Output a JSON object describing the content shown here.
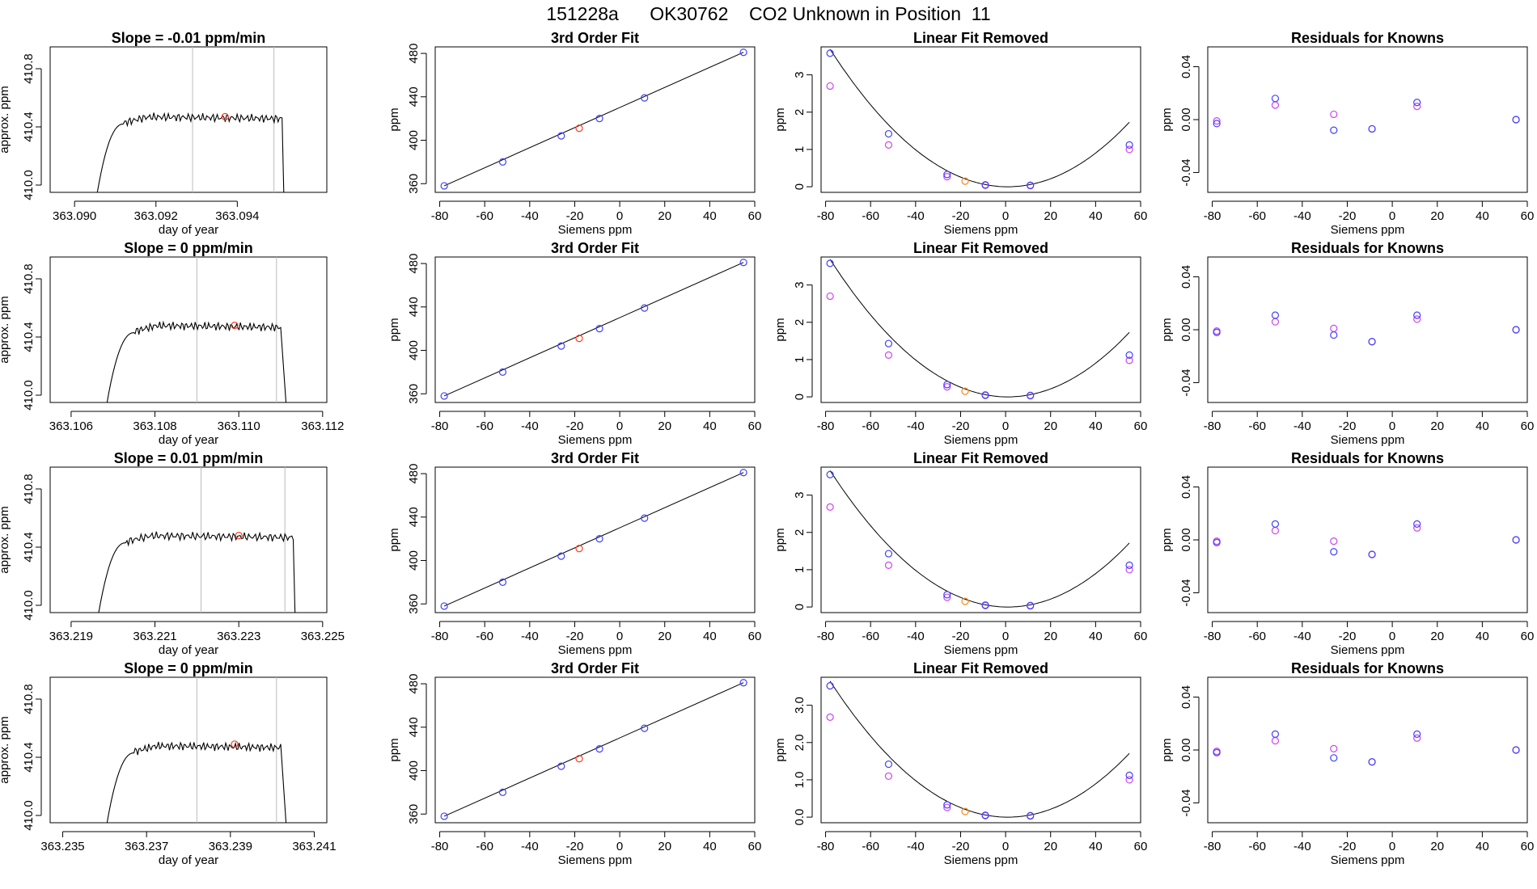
{
  "page_title": "151228a      OK30762    CO2 Unknown in Position  11",
  "colors": {
    "trace": "#000000",
    "known_point": "#4040ff",
    "fit_point": "#cc44ee",
    "unknown_point": "#ff3b1f",
    "unknown_orange": "#f08a24",
    "guide_line": "#bbbbbb"
  },
  "chart_data": [
    {
      "type": "line",
      "row": 1,
      "title": "Slope =  -0.01  ppm/min",
      "xlabel": "day of year",
      "ylabel": "approx. ppm",
      "xticks": [
        "363.090",
        "363.092",
        "363.094"
      ],
      "yticks": [
        "410.0",
        "410.4",
        "410.8"
      ],
      "xlim": [
        363.0894,
        363.0962
      ],
      "ylim": [
        409.95,
        410.95
      ],
      "vlines": [
        363.0929,
        363.0949
      ],
      "marker": {
        "x": 363.0937,
        "y": 410.47
      },
      "trace": {
        "rise_start": 363.0905,
        "plateau_start": 363.0912,
        "plateau_end": 363.0951,
        "drop_end": 363.09515,
        "level": 410.46
      }
    },
    {
      "type": "scatter",
      "row": 1,
      "title": "3rd Order Fit",
      "xlabel": "Siemens ppm",
      "ylabel": "ppm",
      "xticks": [
        "-80",
        "-60",
        "-40",
        "-20",
        "0",
        "20",
        "40",
        "60"
      ],
      "yticks": [
        "360",
        "400",
        "440",
        "480"
      ],
      "xlim": [
        -82,
        60
      ],
      "ylim": [
        352,
        486
      ],
      "known_x": [
        -78,
        -52,
        -26,
        -9,
        11,
        55
      ],
      "known_y": [
        358,
        380,
        404,
        420,
        439,
        481
      ],
      "unknown": {
        "x": -18,
        "y": 411
      }
    },
    {
      "type": "scatter",
      "row": 1,
      "title": "Linear Fit Removed",
      "xlabel": "Siemens ppm",
      "ylabel": "ppm",
      "xticks": [
        "-80",
        "-60",
        "-40",
        "-20",
        "0",
        "20",
        "40",
        "60"
      ],
      "yticks": [
        "0",
        "1",
        "2",
        "3"
      ],
      "xlim": [
        -82,
        60
      ],
      "ylim": [
        -0.15,
        3.75
      ],
      "known_x": [
        -78,
        -52,
        -26,
        -9,
        11,
        55
      ],
      "known_y": [
        3.58,
        1.42,
        0.33,
        0.05,
        0.04,
        1.12
      ],
      "fit_y": [
        2.7,
        1.12,
        0.27,
        0.04,
        0.03,
        1.0
      ],
      "unknown": {
        "x": -18,
        "y": 0.15
      },
      "curve": {
        "a": 0.000592,
        "b": -0.0011,
        "c": 0.0
      }
    },
    {
      "type": "scatter",
      "row": 1,
      "title": "Residuals for Knowns",
      "xlabel": "Siemens ppm",
      "ylabel": "ppm",
      "xticks": [
        "-80",
        "-60",
        "-40",
        "-20",
        "0",
        "20",
        "40",
        "60"
      ],
      "yticks": [
        "-0.04",
        "0.00",
        "0.04"
      ],
      "xlim": [
        -82,
        60
      ],
      "ylim": [
        -0.055,
        0.055
      ],
      "known_x": [
        -78,
        -52,
        -26,
        -9,
        11,
        55
      ],
      "known_y": [
        -0.003,
        0.016,
        -0.008,
        -0.007,
        0.013,
        0.0
      ],
      "fit_y": [
        -0.001,
        0.011,
        0.004,
        -0.007,
        0.01,
        0.0
      ]
    },
    {
      "type": "line",
      "row": 2,
      "title": "Slope =  0  ppm/min",
      "xlabel": "day of year",
      "ylabel": "approx. ppm",
      "xticks": [
        "363.106",
        "363.108",
        "363.110",
        "363.112"
      ],
      "yticks": [
        "410.0",
        "410.4",
        "410.8"
      ],
      "xlim": [
        363.1055,
        363.1121
      ],
      "ylim": [
        409.95,
        410.95
      ],
      "vlines": [
        363.109,
        363.1109
      ],
      "marker": {
        "x": 363.1099,
        "y": 410.48
      },
      "trace": {
        "rise_start": 363.1068,
        "plateau_start": 363.1075,
        "plateau_end": 363.111,
        "drop_end": 363.11115,
        "level": 410.47
      }
    },
    {
      "type": "scatter",
      "row": 2,
      "title": "3rd Order Fit",
      "xlabel": "Siemens ppm",
      "ylabel": "ppm",
      "xticks": [
        "-80",
        "-60",
        "-40",
        "-20",
        "0",
        "20",
        "40",
        "60"
      ],
      "yticks": [
        "360",
        "400",
        "440",
        "480"
      ],
      "xlim": [
        -82,
        60
      ],
      "ylim": [
        352,
        486
      ],
      "known_x": [
        -78,
        -52,
        -26,
        -9,
        11,
        55
      ],
      "known_y": [
        358,
        380,
        404,
        420,
        439,
        481
      ],
      "unknown": {
        "x": -18,
        "y": 411
      }
    },
    {
      "type": "scatter",
      "row": 2,
      "title": "Linear Fit Removed",
      "xlabel": "Siemens ppm",
      "ylabel": "ppm",
      "xticks": [
        "-80",
        "-60",
        "-40",
        "-20",
        "0",
        "20",
        "40",
        "60"
      ],
      "yticks": [
        "0",
        "1",
        "2",
        "3"
      ],
      "xlim": [
        -82,
        60
      ],
      "ylim": [
        -0.15,
        3.75
      ],
      "known_x": [
        -78,
        -52,
        -26,
        -9,
        11,
        55
      ],
      "known_y": [
        3.58,
        1.43,
        0.33,
        0.05,
        0.04,
        1.12
      ],
      "fit_y": [
        2.7,
        1.12,
        0.27,
        0.04,
        0.03,
        0.98
      ],
      "unknown": {
        "x": -18,
        "y": 0.15
      },
      "curve": {
        "a": 0.000592,
        "b": -0.0011,
        "c": 0.0
      }
    },
    {
      "type": "scatter",
      "row": 2,
      "title": "Residuals for Knowns",
      "xlabel": "Siemens ppm",
      "ylabel": "ppm",
      "xticks": [
        "-80",
        "-60",
        "-40",
        "-20",
        "0",
        "20",
        "40",
        "60"
      ],
      "yticks": [
        "-0.04",
        "0.00",
        "0.04"
      ],
      "xlim": [
        -82,
        60
      ],
      "ylim": [
        -0.055,
        0.055
      ],
      "known_x": [
        -78,
        -52,
        -26,
        -9,
        11,
        55
      ],
      "known_y": [
        -0.002,
        0.011,
        -0.004,
        -0.009,
        0.011,
        0.0
      ],
      "fit_y": [
        -0.001,
        0.006,
        0.001,
        -0.009,
        0.008,
        0.0
      ]
    },
    {
      "type": "line",
      "row": 3,
      "title": "Slope =  0.01  ppm/min",
      "xlabel": "day of year",
      "ylabel": "approx. ppm",
      "xticks": [
        "363.219",
        "363.221",
        "363.223",
        "363.225"
      ],
      "yticks": [
        "410.0",
        "410.4",
        "410.8"
      ],
      "xlim": [
        363.2185,
        363.2251
      ],
      "ylim": [
        409.95,
        410.95
      ],
      "vlines": [
        363.2221,
        363.2241
      ],
      "marker": {
        "x": 363.223,
        "y": 410.48
      },
      "trace": {
        "rise_start": 363.2196,
        "plateau_start": 363.2203,
        "plateau_end": 363.2243,
        "drop_end": 363.22435,
        "level": 410.47
      }
    },
    {
      "type": "scatter",
      "row": 3,
      "title": "3rd Order Fit",
      "xlabel": "Siemens ppm",
      "ylabel": "ppm",
      "xticks": [
        "-80",
        "-60",
        "-40",
        "-20",
        "0",
        "20",
        "40",
        "60"
      ],
      "yticks": [
        "360",
        "400",
        "440",
        "480"
      ],
      "xlim": [
        -82,
        60
      ],
      "ylim": [
        352,
        486
      ],
      "known_x": [
        -78,
        -52,
        -26,
        -9,
        11,
        55
      ],
      "known_y": [
        358,
        380,
        404,
        420,
        439,
        481
      ],
      "unknown": {
        "x": -18,
        "y": 411
      }
    },
    {
      "type": "scatter",
      "row": 3,
      "title": "Linear Fit Removed",
      "xlabel": "Siemens ppm",
      "ylabel": "ppm",
      "xticks": [
        "-80",
        "-60",
        "-40",
        "-20",
        "0",
        "20",
        "40",
        "60"
      ],
      "yticks": [
        "0",
        "1",
        "2",
        "3"
      ],
      "xlim": [
        -82,
        60
      ],
      "ylim": [
        -0.15,
        3.75
      ],
      "known_x": [
        -78,
        -52,
        -26,
        -9,
        11,
        55
      ],
      "known_y": [
        3.55,
        1.43,
        0.33,
        0.05,
        0.04,
        1.12
      ],
      "fit_y": [
        2.68,
        1.12,
        0.26,
        0.04,
        0.03,
        1.0
      ],
      "unknown": {
        "x": -18,
        "y": 0.15
      },
      "curve": {
        "a": 0.000587,
        "b": -0.0011,
        "c": 0.0
      }
    },
    {
      "type": "scatter",
      "row": 3,
      "title": "Residuals for Knowns",
      "xlabel": "Siemens ppm",
      "ylabel": "ppm",
      "xticks": [
        "-80",
        "-60",
        "-40",
        "-20",
        "0",
        "20",
        "40",
        "60"
      ],
      "yticks": [
        "-0.04",
        "0.00",
        "0.04"
      ],
      "xlim": [
        -82,
        60
      ],
      "ylim": [
        -0.055,
        0.055
      ],
      "known_x": [
        -78,
        -52,
        -26,
        -9,
        11,
        55
      ],
      "known_y": [
        -0.002,
        0.012,
        -0.009,
        -0.011,
        0.012,
        0.0
      ],
      "fit_y": [
        -0.001,
        0.007,
        -0.001,
        -0.011,
        0.009,
        0.0
      ]
    },
    {
      "type": "line",
      "row": 4,
      "title": "Slope =  0  ppm/min",
      "xlabel": "day of year",
      "ylabel": "approx. ppm",
      "xticks": [
        "363.235",
        "363.237",
        "363.239",
        "363.241"
      ],
      "yticks": [
        "410.0",
        "410.4",
        "410.8"
      ],
      "xlim": [
        363.2347,
        363.2413
      ],
      "ylim": [
        409.95,
        410.95
      ],
      "vlines": [
        363.2382,
        363.2401
      ],
      "marker": {
        "x": 363.2391,
        "y": 410.49
      },
      "trace": {
        "rise_start": 363.236,
        "plateau_start": 363.2367,
        "plateau_end": 363.2402,
        "drop_end": 363.24035,
        "level": 410.47
      }
    },
    {
      "type": "scatter",
      "row": 4,
      "title": "3rd Order Fit",
      "xlabel": "Siemens ppm",
      "ylabel": "ppm",
      "xticks": [
        "-80",
        "-60",
        "-40",
        "-20",
        "0",
        "20",
        "40",
        "60"
      ],
      "yticks": [
        "360",
        "400",
        "440",
        "480"
      ],
      "xlim": [
        -82,
        60
      ],
      "ylim": [
        352,
        486
      ],
      "known_x": [
        -78,
        -52,
        -26,
        -9,
        11,
        55
      ],
      "known_y": [
        358,
        380,
        404,
        420,
        439,
        481
      ],
      "unknown": {
        "x": -18,
        "y": 411
      }
    },
    {
      "type": "scatter",
      "row": 4,
      "title": "Linear Fit Removed",
      "xlabel": "Siemens ppm",
      "ylabel": "ppm",
      "xticks": [
        "-80",
        "-60",
        "-40",
        "-20",
        "0",
        "20",
        "40",
        "60"
      ],
      "yticks": [
        "0.0",
        "1.0",
        "2.0",
        "3.0"
      ],
      "xlim": [
        -82,
        60
      ],
      "ylim": [
        -0.15,
        3.75
      ],
      "known_x": [
        -78,
        -52,
        -26,
        -9,
        11,
        55
      ],
      "known_y": [
        3.52,
        1.42,
        0.33,
        0.05,
        0.04,
        1.12
      ],
      "fit_y": [
        2.68,
        1.1,
        0.26,
        0.04,
        0.03,
        1.0
      ],
      "unknown": {
        "x": -18,
        "y": 0.15
      },
      "curve": {
        "a": 0.000585,
        "b": -0.0011,
        "c": 0.0
      }
    },
    {
      "type": "scatter",
      "row": 4,
      "title": "Residuals for Knowns",
      "xlabel": "Siemens ppm",
      "ylabel": "ppm",
      "xticks": [
        "-80",
        "-60",
        "-40",
        "-20",
        "0",
        "20",
        "40",
        "60"
      ],
      "yticks": [
        "-0.04",
        "0.00",
        "0.04"
      ],
      "xlim": [
        -82,
        60
      ],
      "ylim": [
        -0.055,
        0.055
      ],
      "known_x": [
        -78,
        -52,
        -26,
        -9,
        11,
        55
      ],
      "known_y": [
        -0.002,
        0.012,
        -0.006,
        -0.009,
        0.012,
        0.0
      ],
      "fit_y": [
        -0.001,
        0.007,
        0.001,
        -0.009,
        0.009,
        0.0
      ]
    }
  ]
}
